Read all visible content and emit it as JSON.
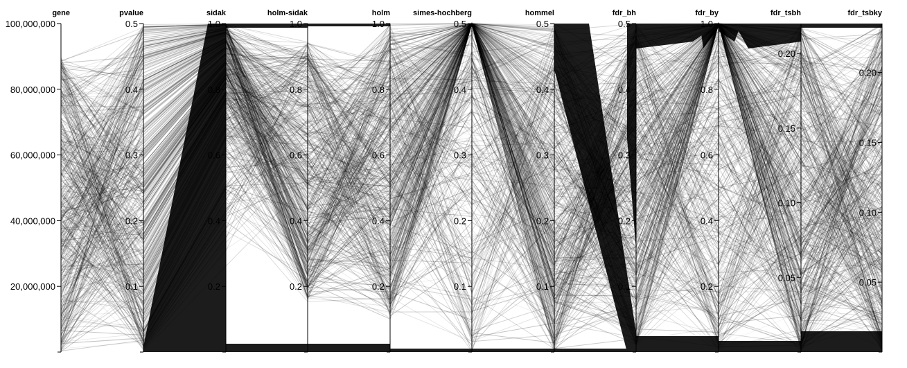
{
  "chart_data": {
    "type": "parallel-coordinates",
    "title": "",
    "axes": [
      {
        "name": "gene",
        "range": [
          0,
          100000000
        ],
        "ticks": [
          20000000,
          40000000,
          60000000,
          80000000,
          100000000
        ],
        "tick_labels": [
          "20,000,000",
          "40,000,000",
          "60,000,000",
          "80,000,000",
          "100,000,000"
        ]
      },
      {
        "name": "pvalue",
        "range": [
          0,
          0.5
        ],
        "ticks": [
          0.1,
          0.2,
          0.3,
          0.4,
          0.5
        ],
        "tick_labels": [
          "0.1",
          "0.2",
          "0.3",
          "0.4",
          "0.5"
        ]
      },
      {
        "name": "sidak",
        "range": [
          0,
          1.0
        ],
        "ticks": [
          0.2,
          0.4,
          0.6,
          0.8,
          1.0
        ],
        "tick_labels": [
          "0.2",
          "0.4",
          "0.6",
          "0.8",
          "1.0"
        ]
      },
      {
        "name": "holm-sidak",
        "range": [
          0,
          1.0
        ],
        "ticks": [
          0.2,
          0.4,
          0.6,
          0.8,
          1.0
        ],
        "tick_labels": [
          "0.2",
          "0.4",
          "0.6",
          "0.8",
          "1.0"
        ]
      },
      {
        "name": "holm",
        "range": [
          0,
          1.0
        ],
        "ticks": [
          0.2,
          0.4,
          0.6,
          0.8,
          1.0
        ],
        "tick_labels": [
          "0.2",
          "0.4",
          "0.6",
          "0.8",
          "1.0"
        ]
      },
      {
        "name": "simes-hochberg",
        "range": [
          0,
          0.5
        ],
        "ticks": [
          0.1,
          0.2,
          0.3,
          0.4,
          0.5
        ],
        "tick_labels": [
          "0.1",
          "0.2",
          "0.3",
          "0.4",
          "0.5"
        ]
      },
      {
        "name": "hommel",
        "range": [
          0,
          0.5
        ],
        "ticks": [
          0.1,
          0.2,
          0.3,
          0.4,
          0.5
        ],
        "tick_labels": [
          "0.1",
          "0.2",
          "0.3",
          "0.4",
          "0.5"
        ]
      },
      {
        "name": "fdr_bh",
        "range": [
          0,
          0.5
        ],
        "ticks": [
          0.1,
          0.2,
          0.3,
          0.4,
          0.5
        ],
        "tick_labels": [
          "0.1",
          "0.2",
          "0.3",
          "0.4",
          "0.5"
        ]
      },
      {
        "name": "fdr_by",
        "range": [
          0,
          1.0
        ],
        "ticks": [
          0.2,
          0.4,
          0.6,
          0.8,
          1.0
        ],
        "tick_labels": [
          "0.2",
          "0.4",
          "0.6",
          "0.8",
          "1.0"
        ]
      },
      {
        "name": "fdr_tsbh",
        "range": [
          0,
          0.22
        ],
        "ticks": [
          0.05,
          0.1,
          0.15,
          0.2
        ],
        "tick_labels": [
          "0.05",
          "0.10",
          "0.15",
          "0.20"
        ]
      },
      {
        "name": "fdr_tsbky",
        "range": [
          0,
          0.235
        ],
        "ticks": [
          0.05,
          0.1,
          0.15,
          0.2
        ],
        "tick_labels": [
          "0.05",
          "0.10",
          "0.15",
          "0.20"
        ]
      }
    ],
    "grid": false,
    "legend": "none",
    "colors": {
      "background": "#ffffff",
      "line_color": "#000000",
      "band_color": "#1c1c1c",
      "axis_color": "#000000"
    }
  }
}
